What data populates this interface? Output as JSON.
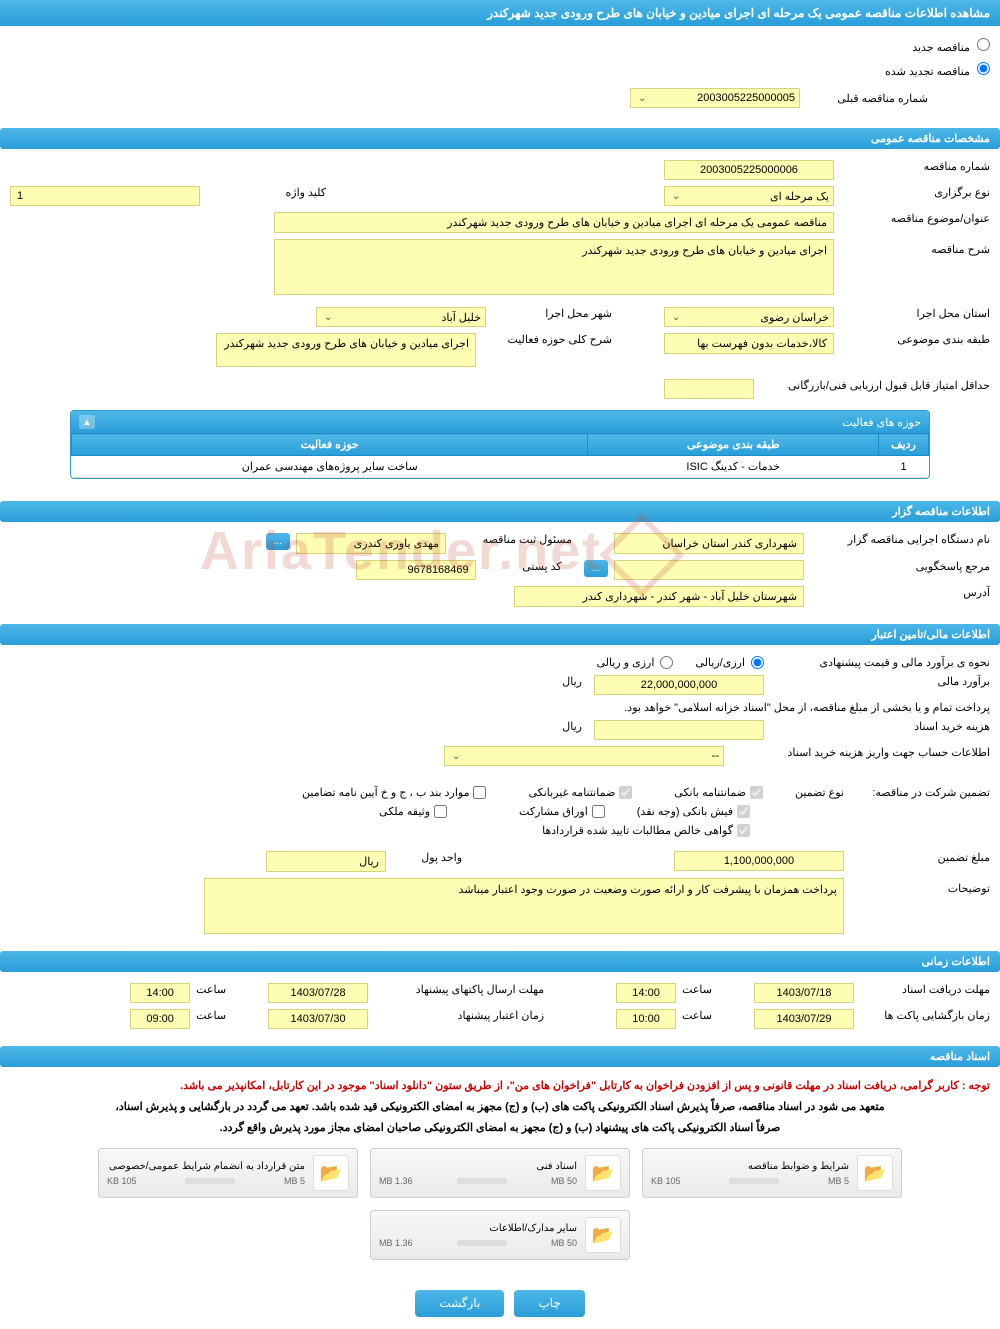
{
  "page_title": "مشاهده اطلاعات مناقصه عمومی یک مرحله ای اجرای میادین و خیابان های طرح ورودی جدید شهرکندر",
  "tender_type": {
    "new_label": "مناقصه جدید",
    "renewed_label": "مناقصه تجدید شده",
    "selected": "renewed"
  },
  "prev_number": {
    "label": "شماره مناقصه قبلی",
    "value": "2003005225000005"
  },
  "sections": {
    "general": "مشخصات مناقصه عمومی",
    "organizer": "اطلاعات مناقصه گزار",
    "financial": "اطلاعات مالی/تامین اعتبار",
    "timing": "اطلاعات زمانی",
    "documents": "اسناد مناقصه"
  },
  "general": {
    "number_label": "شماره مناقصه",
    "number": "2003005225000006",
    "type_label": "نوع برگزاری",
    "type": "یک مرحله ای",
    "keyword_label": "کلید واژه",
    "keyword": "1",
    "subject_label": "عنوان/موضوع مناقصه",
    "subject": "مناقصه عمومی یک مرحله ای اجرای میادین و خیابان های طرح ورودی جدید شهرکندر",
    "desc_label": "شرح مناقصه",
    "desc": "اجرای میادین و خیابان های طرح ورودی جدید شهرکندر",
    "province_label": "استان محل اجرا",
    "province": "خراسان رضوی",
    "city_label": "شهر محل اجرا",
    "city": "خلیل آباد",
    "category_label": "طبقه بندی موضوعی",
    "category": "کالا،خدمات بدون فهرست بها",
    "scope_label": "شرح کلی حوزه فعالیت",
    "scope": "اجرای میادین و خیابان های طرح ورودی جدید شهرکندر",
    "min_score_label": "حداقل امتیاز قابل قبول ارزیابی فنی/بازرگانی"
  },
  "activity_table": {
    "title": "حوزه های فعالیت",
    "col_row": "ردیف",
    "col_category": "طبقه بندی موضوعی",
    "col_scope": "حوزه فعالیت",
    "rows": [
      {
        "n": "1",
        "category": "خدمات - کدینگ ISIC",
        "scope": "ساخت سایر پروژه‌های مهندسی عمران"
      }
    ]
  },
  "organizer": {
    "name_label": "نام دستگاه اجرایی مناقصه گزار",
    "name": "شهرداری کندر استان خراسان",
    "responsible_label": "مسئول ثبت مناقصه",
    "responsible": "مهدی یاوری کندری",
    "more_btn": "...",
    "ref_label": "مرجع پاسخگویی",
    "postal_label": "کد پستی",
    "postal": "9678168469",
    "address_label": "آدرس",
    "address": "شهرستان خلیل آباد - شهر کندر - شهرداری کندر"
  },
  "financial": {
    "method_label": "نحوه ی برآورد مالی و قیمت پیشنهادی",
    "method_opt1": "ارزی/ریالی",
    "method_opt2": "ارزی و ریالی",
    "estimate_label": "برآورد مالی",
    "estimate": "22,000,000,000",
    "currency": "ریال",
    "payment_note": "پرداخت تمام و یا بخشی از مبلغ مناقصه، از محل \"اسناد خزانه اسلامی\" خواهد بود.",
    "doc_cost_label": "هزینه خرید اسناد",
    "account_info_label": "اطلاعات حساب جهت واریز هزینه خرید اسناد",
    "account_placeholder": "--",
    "guarantee_label": "تضمین شرکت در مناقصه:",
    "guarantee_type_label": "نوع تضمین",
    "chk_bank": "ضمانتنامه بانکی",
    "chk_nonbank": "ضمانتنامه غیربانکی",
    "chk_bonds": "موارد بند ب ، ج و خ آیین نامه تضامین",
    "chk_cash": "فیش بانکی (وجه نقد)",
    "chk_securities": "اوراق مشارکت",
    "chk_property": "وثیقه ملکی",
    "chk_cert": "گواهی خالص مطالبات تایید شده قراردادها",
    "guarantee_amount_label": "مبلغ تضمین",
    "guarantee_amount": "1,100,000,000",
    "unit_label": "واحد پول",
    "unit": "ریال",
    "notes_label": "توضیحات",
    "notes": "پرداخت همزمان با پیشرفت کار و ارائه صورت وضعیت در صورت وجود اعتبار میباشد"
  },
  "timing": {
    "receive_label": "مهلت دریافت اسناد",
    "receive_date": "1403/07/18",
    "receive_time": "14:00",
    "submit_label": "مهلت ارسال پاکتهای پیشنهاد",
    "submit_date": "1403/07/28",
    "submit_time": "14:00",
    "open_label": "زمان بازگشایی پاکت ها",
    "open_date": "1403/07/29",
    "open_time": "10:00",
    "validity_label": "زمان اعتبار پیشنهاد",
    "validity_date": "1403/07/30",
    "validity_time": "09:00",
    "time_label": "ساعت"
  },
  "documents": {
    "warning": "توجه : کاربر گرامی، دریافت اسناد در مهلت قانونی و پس از افزودن فراخوان به کارتابل \"فراخوان های من\"، از طریق ستون \"دانلود اسناد\" موجود در این کارتابل، امکانپذیر می باشد.",
    "note1": "متعهد می شود در اسناد مناقصه، صرفاً پذیرش اسناد الکترونیکی پاکت های (ب) و (ج) مجهز به امضای الکترونیکی قید شده باشد. تعهد می گردد در بارگشایی و پذیرش اسناد،",
    "note2": "صرفاً اسناد الکترونیکی پاکت های پیشنهاد (ب) و (ج) مجهز به امضای الکترونیکی صاحبان امضای مجاز مورد پذیرش واقع گردد.",
    "files": [
      {
        "title": "شرایط و ضوابط مناقصه",
        "size": "105 KB",
        "limit": "5 MB",
        "progress": 2
      },
      {
        "title": "اسناد فنی",
        "size": "1.36 MB",
        "limit": "50 MB",
        "progress": 3
      },
      {
        "title": "متن قرارداد به انضمام شرایط عمومی/خصوصی",
        "size": "105 KB",
        "limit": "5 MB",
        "progress": 2
      },
      {
        "title": "سایر مدارک/اطلاعات",
        "size": "1.36 MB",
        "limit": "50 MB",
        "progress": 3
      }
    ]
  },
  "footer": {
    "print": "چاپ",
    "back": "بازگشت"
  },
  "watermark": "AriaTender.net"
}
